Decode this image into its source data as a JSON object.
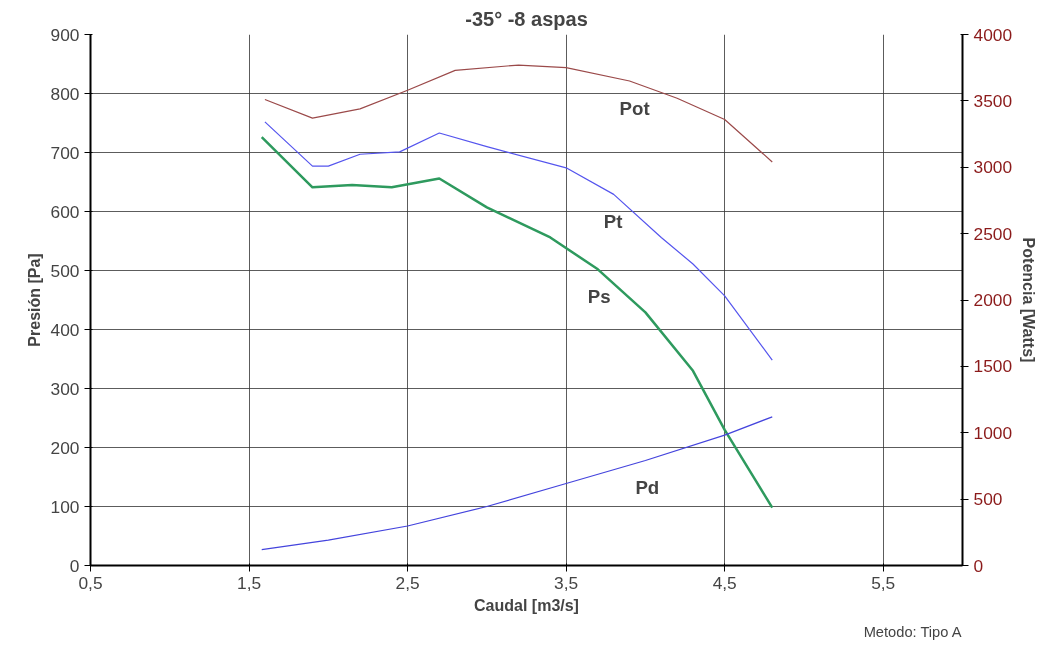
{
  "chart_data": {
    "type": "line",
    "title": "-35° -8 aspas",
    "xlabel": "Caudal [m3/s]",
    "ylabel": "Presión [Pa]",
    "y2label": "Potencia [Watts]",
    "annotations": [
      "Metodo: Tipo A"
    ],
    "xlim": [
      0.5,
      6.0
    ],
    "xticks": [
      {
        "value": 0.5,
        "label": "0,5"
      },
      {
        "value": 1.5,
        "label": "1,5"
      },
      {
        "value": 2.5,
        "label": "2,5"
      },
      {
        "value": 3.5,
        "label": "3,5"
      },
      {
        "value": 4.5,
        "label": "4,5"
      },
      {
        "value": 5.5,
        "label": "5,5"
      }
    ],
    "ylim": [
      0,
      900
    ],
    "yticks": [
      0,
      100,
      200,
      300,
      400,
      500,
      600,
      700,
      800,
      900
    ],
    "y2lim": [
      0,
      4000
    ],
    "y2ticks": [
      0,
      500,
      1000,
      1500,
      2000,
      2500,
      3000,
      3500,
      4000
    ],
    "grid": true,
    "marker": "none",
    "line_style": "solid",
    "series": [
      {
        "name": "Pot",
        "color": "#9b4a4a",
        "axis": "y2",
        "x": [
          1.6,
          1.9,
          2.2,
          2.5,
          2.8,
          3.2,
          3.5,
          3.9,
          4.2,
          4.5,
          4.8
        ],
        "values": [
          3510,
          3370,
          3440,
          3580,
          3730,
          3770,
          3750,
          3650,
          3520,
          3360,
          3040
        ]
      },
      {
        "name": "Pt",
        "color": "#5555ee",
        "x": [
          1.6,
          1.9,
          2.0,
          2.2,
          2.45,
          2.7,
          3.0,
          3.5,
          3.8,
          4.1,
          4.3,
          4.5,
          4.8
        ],
        "values": [
          752,
          677,
          677,
          697,
          701,
          733,
          710,
          674,
          629,
          556,
          511,
          457,
          348
        ]
      },
      {
        "name": "Ps",
        "color": "#2e9a5e",
        "x": [
          1.58,
          1.9,
          2.15,
          2.4,
          2.7,
          3.0,
          3.4,
          3.7,
          4.0,
          4.3,
          4.5,
          4.8
        ],
        "values": [
          726,
          641,
          645,
          641,
          656,
          607,
          556,
          502,
          429,
          330,
          230,
          98
        ]
      },
      {
        "name": "Pd",
        "color": "#4444dd",
        "x": [
          1.58,
          2.0,
          2.5,
          3.0,
          3.5,
          4.0,
          4.5,
          4.8
        ],
        "values": [
          27,
          43,
          67,
          100,
          139,
          178,
          221,
          252
        ]
      }
    ]
  }
}
